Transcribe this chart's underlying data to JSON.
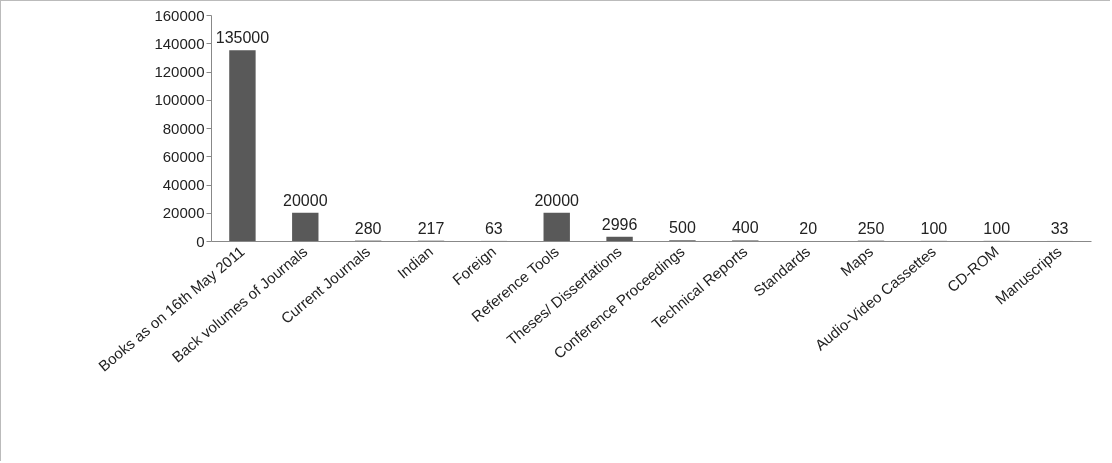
{
  "chart_data": {
    "type": "bar",
    "categories": [
      "Books as on 16th May 2011",
      "Back volumes of Journals",
      "Current Journals",
      "Indian",
      "Foreign",
      "Reference Tools",
      "Theses/ Dissertations",
      "Conference Proceedings",
      "Technical Reports",
      "Standards",
      "Maps",
      "Audio-Video Cassettes",
      "CD-ROM",
      "Manuscripts"
    ],
    "values": [
      135000,
      20000,
      280,
      217,
      63,
      20000,
      2996,
      500,
      400,
      20,
      250,
      100,
      100,
      33
    ],
    "color": "#595959",
    "ylim": [
      0,
      160000
    ],
    "yticks": [
      0,
      20000,
      40000,
      60000,
      80000,
      100000,
      120000,
      140000,
      160000
    ],
    "grid": false,
    "data_labels": true
  }
}
